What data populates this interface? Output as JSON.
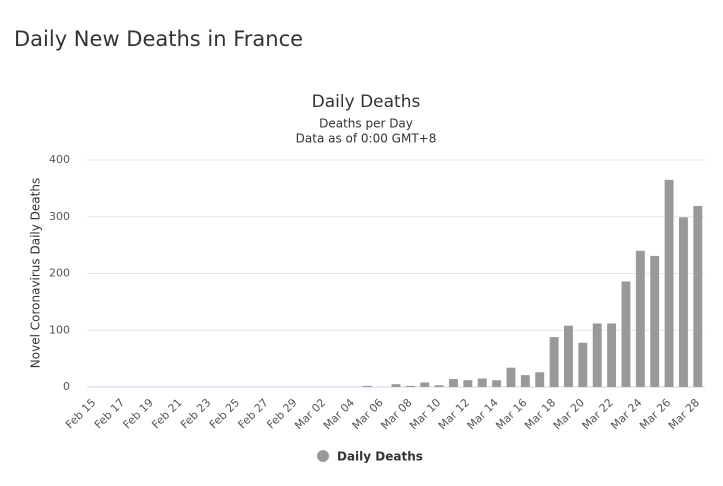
{
  "heading": "Daily New Deaths in France",
  "chart_data": {
    "type": "bar",
    "title": "Daily Deaths",
    "subtitle": [
      "Deaths per Day",
      "Data as of 0:00 GMT+8"
    ],
    "y_label": "Novel Coronavirus Daily Deaths",
    "categories": [
      "Feb 15",
      null,
      "Feb 17",
      null,
      "Feb 19",
      null,
      "Feb 21",
      null,
      "Feb 23",
      null,
      "Feb 25",
      null,
      "Feb 27",
      null,
      "Feb 29",
      null,
      "Mar 02",
      null,
      "Mar 04",
      null,
      "Mar 06",
      null,
      "Mar 08",
      null,
      "Mar 10",
      null,
      "Mar 12",
      null,
      "Mar 14",
      null,
      "Mar 16",
      null,
      "Mar 18",
      null,
      "Mar 20",
      null,
      "Mar 22",
      null,
      "Mar 24",
      null,
      "Mar 26",
      null,
      "Mar 28"
    ],
    "series": [
      {
        "name": "Daily Deaths",
        "color": "#999999",
        "values": [
          0,
          0,
          0,
          0,
          0,
          0,
          0,
          0,
          0,
          0,
          0,
          0,
          0,
          0,
          0,
          0,
          0,
          0,
          0,
          2,
          0,
          5,
          2,
          8,
          3,
          14,
          12,
          15,
          12,
          34,
          21,
          26,
          88,
          108,
          78,
          112,
          112,
          186,
          240,
          231,
          365,
          299,
          319
        ]
      }
    ],
    "ylim": [
      0,
      400
    ],
    "yticks": [
      0,
      100,
      200,
      300,
      400
    ],
    "grid": true,
    "legend": "bottom"
  }
}
